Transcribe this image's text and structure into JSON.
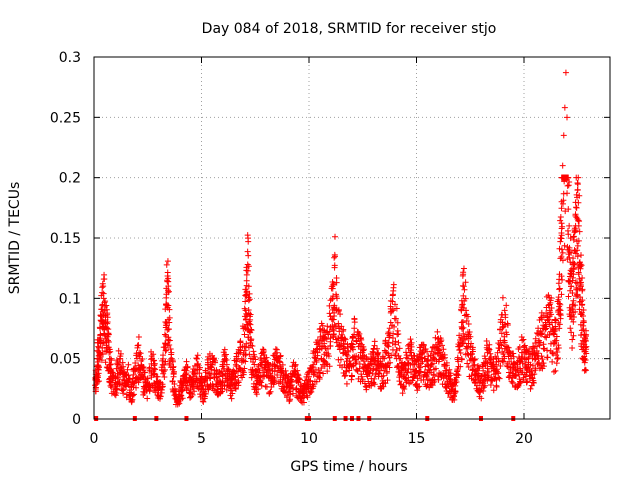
{
  "chart_data": {
    "type": "scatter",
    "title": "Day 084 of 2018, SRMTID for receiver stjo",
    "xlabel": "GPS time / hours",
    "ylabel": "SRMTID / TECUs",
    "xlim": [
      0,
      24
    ],
    "ylim": [
      0,
      0.3
    ],
    "x_ticks": [
      0,
      5,
      10,
      15,
      20
    ],
    "x_tick_labels": [
      "0",
      "5",
      "10",
      "15",
      "20"
    ],
    "y_ticks": [
      0,
      0.05,
      0.1,
      0.15,
      0.2,
      0.25,
      0.3
    ],
    "y_tick_labels": [
      "0",
      "0.05",
      "0.1",
      "0.15",
      "0.2",
      "0.25",
      "0.3"
    ],
    "grid": true,
    "marker": "+",
    "marker_color": "#ff0000",
    "zero_markers_x": [
      0.1,
      1.9,
      2.9,
      4.3,
      9.9,
      10.0,
      11.2,
      11.7,
      12.0,
      12.3,
      12.8,
      15.5,
      18.0,
      19.5
    ],
    "series": [
      {
        "name": "SRMTID",
        "points": [
          [
            0.05,
            0.028
          ],
          [
            0.1,
            0.035
          ],
          [
            0.15,
            0.05
          ],
          [
            0.2,
            0.06
          ],
          [
            0.25,
            0.055
          ],
          [
            0.3,
            0.07
          ],
          [
            0.35,
            0.085
          ],
          [
            0.4,
            0.095
          ],
          [
            0.45,
            0.1
          ],
          [
            0.5,
            0.09
          ],
          [
            0.55,
            0.08
          ],
          [
            0.6,
            0.075
          ],
          [
            0.65,
            0.065
          ],
          [
            0.7,
            0.055
          ],
          [
            0.75,
            0.045
          ],
          [
            0.8,
            0.04
          ],
          [
            0.9,
            0.035
          ],
          [
            1.0,
            0.03
          ],
          [
            1.1,
            0.045
          ],
          [
            1.2,
            0.05
          ],
          [
            1.3,
            0.04
          ],
          [
            1.4,
            0.035
          ],
          [
            1.5,
            0.03
          ],
          [
            1.6,
            0.045
          ],
          [
            1.7,
            0.02
          ],
          [
            1.8,
            0.03
          ],
          [
            1.9,
            0.04
          ],
          [
            2.0,
            0.05
          ],
          [
            2.1,
            0.055
          ],
          [
            2.2,
            0.045
          ],
          [
            2.3,
            0.035
          ],
          [
            2.4,
            0.03
          ],
          [
            2.5,
            0.028
          ],
          [
            2.6,
            0.04
          ],
          [
            2.7,
            0.05
          ],
          [
            2.8,
            0.042
          ],
          [
            2.9,
            0.035
          ],
          [
            3.0,
            0.025
          ],
          [
            3.1,
            0.03
          ],
          [
            3.2,
            0.045
          ],
          [
            3.3,
            0.07
          ],
          [
            3.35,
            0.095
          ],
          [
            3.4,
            0.115
          ],
          [
            3.45,
            0.105
          ],
          [
            3.5,
            0.08
          ],
          [
            3.6,
            0.05
          ],
          [
            3.7,
            0.035
          ],
          [
            3.8,
            0.02
          ],
          [
            3.9,
            0.015
          ],
          [
            4.0,
            0.025
          ],
          [
            4.1,
            0.03
          ],
          [
            4.2,
            0.035
          ],
          [
            4.3,
            0.04
          ],
          [
            4.4,
            0.032
          ],
          [
            4.5,
            0.028
          ],
          [
            4.6,
            0.035
          ],
          [
            4.7,
            0.04
          ],
          [
            4.8,
            0.045
          ],
          [
            4.9,
            0.038
          ],
          [
            5.0,
            0.03
          ],
          [
            5.1,
            0.025
          ],
          [
            5.2,
            0.035
          ],
          [
            5.3,
            0.042
          ],
          [
            5.4,
            0.05
          ],
          [
            5.5,
            0.045
          ],
          [
            5.6,
            0.04
          ],
          [
            5.7,
            0.035
          ],
          [
            5.8,
            0.03
          ],
          [
            5.9,
            0.038
          ],
          [
            6.0,
            0.045
          ],
          [
            6.1,
            0.05
          ],
          [
            6.2,
            0.04
          ],
          [
            6.3,
            0.035
          ],
          [
            6.4,
            0.03
          ],
          [
            6.5,
            0.038
          ],
          [
            6.6,
            0.045
          ],
          [
            6.7,
            0.05
          ],
          [
            6.8,
            0.055
          ],
          [
            6.9,
            0.06
          ],
          [
            7.0,
            0.07
          ],
          [
            7.05,
            0.09
          ],
          [
            7.1,
            0.105
          ],
          [
            7.15,
            0.128
          ],
          [
            7.2,
            0.11
          ],
          [
            7.25,
            0.085
          ],
          [
            7.3,
            0.065
          ],
          [
            7.4,
            0.05
          ],
          [
            7.5,
            0.04
          ],
          [
            7.6,
            0.035
          ],
          [
            7.7,
            0.04
          ],
          [
            7.8,
            0.045
          ],
          [
            7.9,
            0.05
          ],
          [
            8.0,
            0.045
          ],
          [
            8.1,
            0.04
          ],
          [
            8.2,
            0.035
          ],
          [
            8.3,
            0.04
          ],
          [
            8.4,
            0.045
          ],
          [
            8.5,
            0.05
          ],
          [
            8.6,
            0.048
          ],
          [
            8.7,
            0.042
          ],
          [
            8.8,
            0.038
          ],
          [
            8.9,
            0.035
          ],
          [
            9.0,
            0.03
          ],
          [
            9.1,
            0.025
          ],
          [
            9.2,
            0.035
          ],
          [
            9.3,
            0.04
          ],
          [
            9.4,
            0.035
          ],
          [
            9.5,
            0.03
          ],
          [
            9.6,
            0.025
          ],
          [
            9.7,
            0.02
          ],
          [
            9.8,
            0.025
          ],
          [
            9.9,
            0.03
          ],
          [
            10.0,
            0.035
          ],
          [
            10.1,
            0.04
          ],
          [
            10.2,
            0.045
          ],
          [
            10.3,
            0.05
          ],
          [
            10.4,
            0.055
          ],
          [
            10.5,
            0.06
          ],
          [
            10.6,
            0.065
          ],
          [
            10.7,
            0.06
          ],
          [
            10.8,
            0.055
          ],
          [
            10.9,
            0.07
          ],
          [
            11.0,
            0.085
          ],
          [
            11.1,
            0.1
          ],
          [
            11.15,
            0.112
          ],
          [
            11.2,
            0.136
          ],
          [
            11.3,
            0.09
          ],
          [
            11.4,
            0.075
          ],
          [
            11.5,
            0.065
          ],
          [
            11.6,
            0.06
          ],
          [
            11.7,
            0.055
          ],
          [
            11.8,
            0.05
          ],
          [
            11.9,
            0.045
          ],
          [
            12.0,
            0.06
          ],
          [
            12.1,
            0.07
          ],
          [
            12.2,
            0.065
          ],
          [
            12.3,
            0.06
          ],
          [
            12.4,
            0.055
          ],
          [
            12.5,
            0.05
          ],
          [
            12.6,
            0.045
          ],
          [
            12.7,
            0.04
          ],
          [
            12.8,
            0.045
          ],
          [
            12.9,
            0.05
          ],
          [
            13.0,
            0.055
          ],
          [
            13.1,
            0.05
          ],
          [
            13.2,
            0.045
          ],
          [
            13.3,
            0.04
          ],
          [
            13.4,
            0.045
          ],
          [
            13.5,
            0.05
          ],
          [
            13.6,
            0.055
          ],
          [
            13.7,
            0.06
          ],
          [
            13.8,
            0.08
          ],
          [
            13.9,
            0.09
          ],
          [
            14.0,
            0.095
          ],
          [
            14.1,
            0.07
          ],
          [
            14.2,
            0.05
          ],
          [
            14.3,
            0.04
          ],
          [
            14.4,
            0.035
          ],
          [
            14.5,
            0.045
          ],
          [
            14.6,
            0.05
          ],
          [
            14.7,
            0.055
          ],
          [
            14.8,
            0.05
          ],
          [
            14.9,
            0.045
          ],
          [
            15.0,
            0.04
          ],
          [
            15.1,
            0.045
          ],
          [
            15.2,
            0.05
          ],
          [
            15.3,
            0.055
          ],
          [
            15.4,
            0.05
          ],
          [
            15.5,
            0.045
          ],
          [
            15.6,
            0.04
          ],
          [
            15.7,
            0.045
          ],
          [
            15.8,
            0.05
          ],
          [
            15.9,
            0.055
          ],
          [
            16.0,
            0.06
          ],
          [
            16.1,
            0.055
          ],
          [
            16.2,
            0.05
          ],
          [
            16.3,
            0.045
          ],
          [
            16.4,
            0.04
          ],
          [
            16.5,
            0.035
          ],
          [
            16.6,
            0.03
          ],
          [
            16.7,
            0.025
          ],
          [
            16.8,
            0.03
          ],
          [
            16.9,
            0.04
          ],
          [
            17.0,
            0.06
          ],
          [
            17.1,
            0.08
          ],
          [
            17.15,
            0.095
          ],
          [
            17.2,
            0.11
          ],
          [
            17.3,
            0.09
          ],
          [
            17.4,
            0.07
          ],
          [
            17.5,
            0.06
          ],
          [
            17.6,
            0.05
          ],
          [
            17.7,
            0.045
          ],
          [
            17.8,
            0.04
          ],
          [
            17.9,
            0.035
          ],
          [
            18.0,
            0.03
          ],
          [
            18.1,
            0.04
          ],
          [
            18.2,
            0.05
          ],
          [
            18.3,
            0.055
          ],
          [
            18.4,
            0.05
          ],
          [
            18.5,
            0.045
          ],
          [
            18.6,
            0.04
          ],
          [
            18.7,
            0.045
          ],
          [
            18.8,
            0.05
          ],
          [
            18.9,
            0.065
          ],
          [
            19.0,
            0.08
          ],
          [
            19.1,
            0.09
          ],
          [
            19.2,
            0.07
          ],
          [
            19.3,
            0.055
          ],
          [
            19.4,
            0.05
          ],
          [
            19.5,
            0.045
          ],
          [
            19.6,
            0.04
          ],
          [
            19.7,
            0.045
          ],
          [
            19.8,
            0.05
          ],
          [
            19.9,
            0.055
          ],
          [
            20.0,
            0.06
          ],
          [
            20.1,
            0.055
          ],
          [
            20.2,
            0.05
          ],
          [
            20.3,
            0.045
          ],
          [
            20.4,
            0.05
          ],
          [
            20.5,
            0.055
          ],
          [
            20.6,
            0.06
          ],
          [
            20.7,
            0.065
          ],
          [
            20.8,
            0.07
          ],
          [
            20.9,
            0.075
          ],
          [
            21.0,
            0.08
          ],
          [
            21.1,
            0.085
          ],
          [
            21.2,
            0.09
          ],
          [
            21.3,
            0.08
          ],
          [
            21.4,
            0.07
          ],
          [
            21.5,
            0.065
          ],
          [
            21.6,
            0.09
          ],
          [
            21.65,
            0.12
          ],
          [
            21.7,
            0.15
          ],
          [
            21.75,
            0.18
          ],
          [
            21.8,
            0.21
          ],
          [
            21.85,
            0.235
          ],
          [
            21.9,
            0.258
          ],
          [
            21.95,
            0.287
          ],
          [
            22.0,
            0.25
          ],
          [
            22.05,
            0.2
          ],
          [
            22.1,
            0.16
          ],
          [
            22.15,
            0.13
          ],
          [
            22.2,
            0.11
          ],
          [
            22.25,
            0.095
          ],
          [
            22.3,
            0.12
          ],
          [
            22.35,
            0.14
          ],
          [
            22.4,
            0.16
          ],
          [
            22.45,
            0.175
          ],
          [
            22.5,
            0.19
          ],
          [
            22.55,
            0.16
          ],
          [
            22.6,
            0.13
          ],
          [
            22.65,
            0.11
          ],
          [
            22.7,
            0.095
          ],
          [
            22.75,
            0.08
          ],
          [
            22.8,
            0.07
          ],
          [
            22.85,
            0.065
          ],
          [
            22.9,
            0.06
          ]
        ]
      }
    ]
  }
}
